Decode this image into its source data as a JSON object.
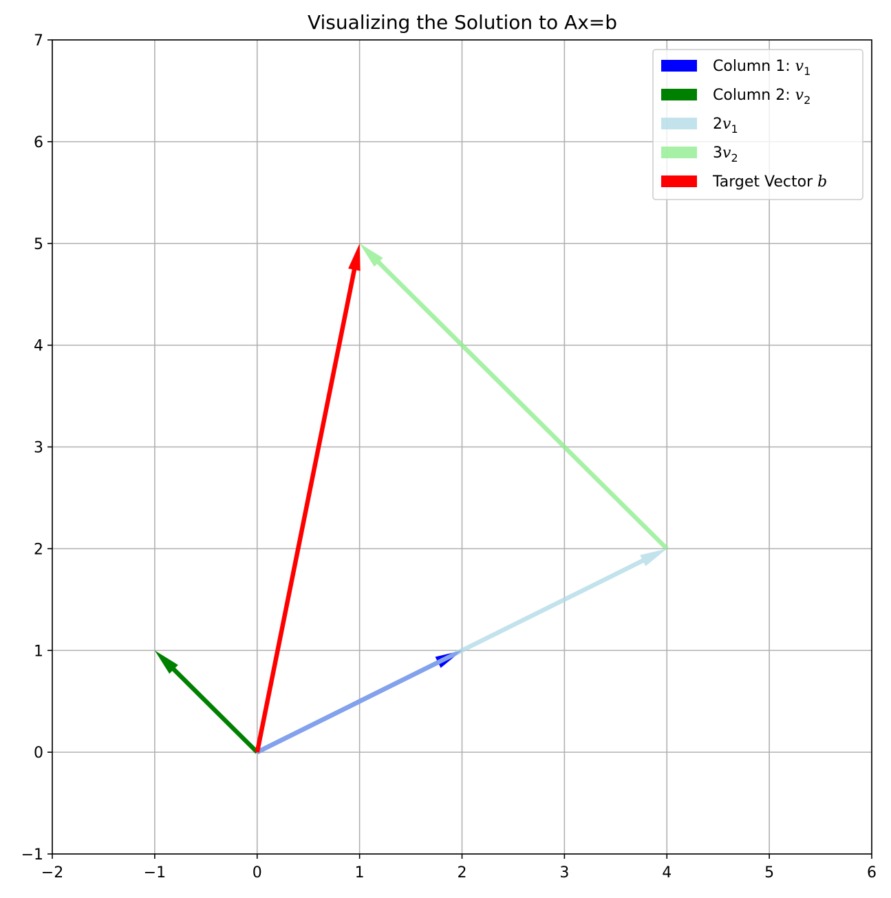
{
  "chart_data": {
    "type": "quiver",
    "title": "Visualizing the Solution to Ax=b",
    "xlabel": "",
    "ylabel": "",
    "xlim": [
      -2,
      6
    ],
    "ylim": [
      -1,
      7
    ],
    "xticks": [
      -2,
      -1,
      0,
      1,
      2,
      3,
      4,
      5,
      6
    ],
    "yticks": [
      -1,
      0,
      1,
      2,
      3,
      4,
      5,
      6,
      7
    ],
    "grid": true,
    "legend_position": "top-right",
    "vectors": [
      {
        "name": "Column 1: v1",
        "legend_prefix": "Column 1: ",
        "legend_symbol": "v",
        "legend_sub": "1",
        "origin": [
          0,
          0
        ],
        "components": [
          2,
          1
        ],
        "color": "#0000ff",
        "alpha": 1.0
      },
      {
        "name": "Column 2: v2",
        "legend_prefix": "Column 2: ",
        "legend_symbol": "v",
        "legend_sub": "2",
        "origin": [
          0,
          0
        ],
        "components": [
          -1,
          1
        ],
        "color": "#008000",
        "alpha": 1.0
      },
      {
        "name": "2v1",
        "legend_prefix": "2",
        "legend_symbol": "v",
        "legend_sub": "1",
        "origin": [
          0,
          0
        ],
        "components": [
          4,
          2
        ],
        "color": "#add8e6",
        "alpha": 0.75
      },
      {
        "name": "3v2",
        "legend_prefix": "3",
        "legend_symbol": "v",
        "legend_sub": "2",
        "origin": [
          4,
          2
        ],
        "components": [
          -3,
          3
        ],
        "color": "#90ee90",
        "alpha": 0.8
      },
      {
        "name": "Target Vector b",
        "legend_prefix": "Target Vector ",
        "legend_symbol": "b",
        "legend_sub": "",
        "origin": [
          0,
          0
        ],
        "components": [
          1,
          5
        ],
        "color": "#ff0000",
        "alpha": 1.0
      }
    ]
  }
}
